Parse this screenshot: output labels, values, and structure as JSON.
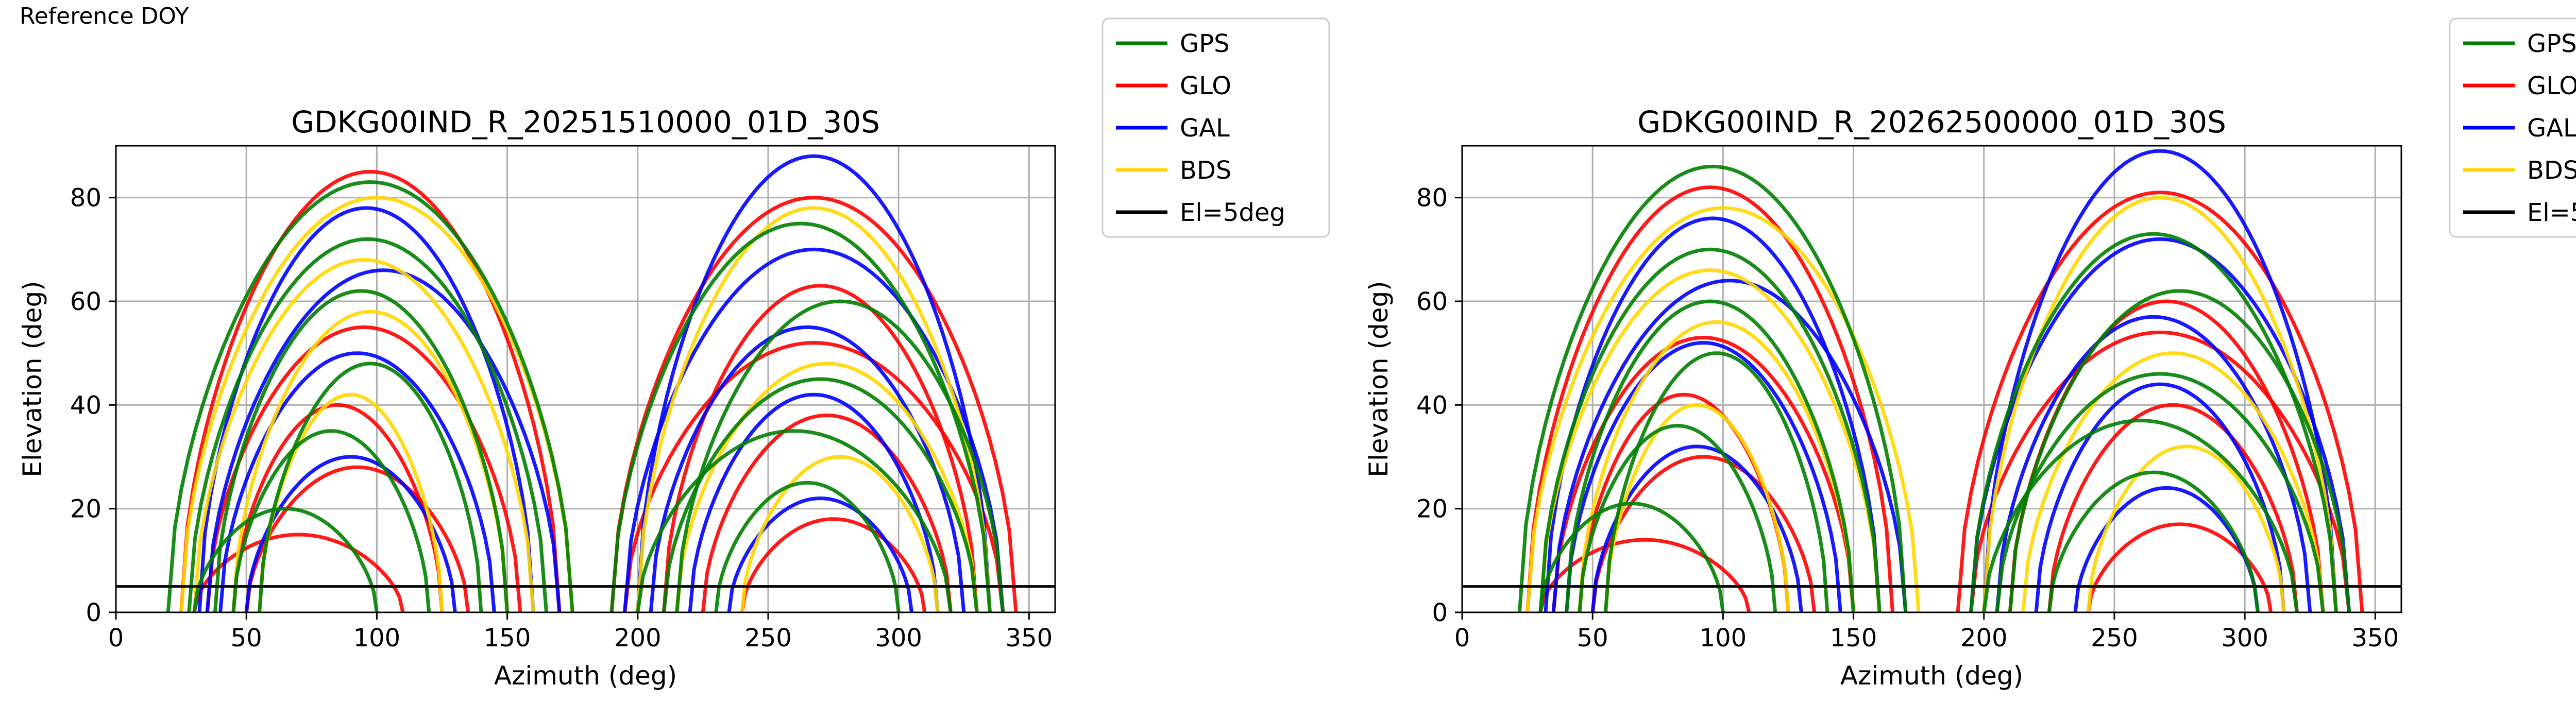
{
  "figure_label": "Reference DOY",
  "colors": {
    "GPS": "#008000",
    "GLO": "#ff0000",
    "GAL": "#0000ff",
    "BDS": "#ffd700",
    "El=5deg": "#000000"
  },
  "legend_entries": [
    "GPS",
    "GLO",
    "GAL",
    "BDS",
    "El=5deg"
  ],
  "chart_data": [
    {
      "type": "line",
      "title": "GDKG00IND_R_20251510000_01D_30S",
      "xlabel": "Azimuth (deg)",
      "ylabel": "Elevation (deg)",
      "xlim": [
        0,
        360
      ],
      "ylim": [
        0,
        90
      ],
      "xticks": [
        0,
        50,
        100,
        150,
        200,
        250,
        300,
        350
      ],
      "yticks": [
        0,
        20,
        40,
        60,
        80
      ],
      "grid": true,
      "legend_position": "outside-top-right",
      "reference_line": {
        "name": "El=5deg",
        "y": 5
      },
      "series": [
        {
          "name": "GPS",
          "tracks": [
            {
              "az0": 28,
              "az1": 165,
              "peak": 72
            },
            {
              "az0": 38,
              "az1": 150,
              "peak": 62
            },
            {
              "az0": 20,
              "az1": 175,
              "peak": 83
            },
            {
              "az0": 190,
              "az1": 335,
              "peak": 75
            },
            {
              "az0": 210,
              "az1": 330,
              "peak": 45
            },
            {
              "az0": 230,
              "az1": 300,
              "peak": 25
            },
            {
              "az0": 215,
              "az1": 340,
              "peak": 60
            },
            {
              "az0": 45,
              "az1": 120,
              "peak": 35
            },
            {
              "az0": 55,
              "az1": 140,
              "peak": 48
            },
            {
              "az0": 200,
              "az1": 320,
              "peak": 35
            },
            {
              "az0": 30,
              "az1": 100,
              "peak": 20
            }
          ]
        },
        {
          "name": "GLO",
          "tracks": [
            {
              "az0": 25,
              "az1": 170,
              "peak": 85
            },
            {
              "az0": 35,
              "az1": 155,
              "peak": 55
            },
            {
              "az0": 190,
              "az1": 345,
              "peak": 80
            },
            {
              "az0": 210,
              "az1": 330,
              "peak": 63
            },
            {
              "az0": 225,
              "az1": 320,
              "peak": 38
            },
            {
              "az0": 50,
              "az1": 135,
              "peak": 28
            },
            {
              "az0": 240,
              "az1": 310,
              "peak": 18
            },
            {
              "az0": 45,
              "az1": 125,
              "peak": 40
            },
            {
              "az0": 195,
              "az1": 340,
              "peak": 52
            },
            {
              "az0": 30,
              "az1": 110,
              "peak": 15
            }
          ]
        },
        {
          "name": "GAL",
          "tracks": [
            {
              "az0": 32,
              "az1": 160,
              "peak": 78
            },
            {
              "az0": 40,
              "az1": 145,
              "peak": 50
            },
            {
              "az0": 195,
              "az1": 340,
              "peak": 70
            },
            {
              "az0": 205,
              "az1": 325,
              "peak": 55
            },
            {
              "az0": 220,
              "az1": 315,
              "peak": 42
            },
            {
              "az0": 50,
              "az1": 130,
              "peak": 30
            },
            {
              "az0": 235,
              "az1": 305,
              "peak": 22
            },
            {
              "az0": 200,
              "az1": 335,
              "peak": 88
            },
            {
              "az0": 35,
              "az1": 170,
              "peak": 66
            }
          ]
        },
        {
          "name": "BDS",
          "tracks": [
            {
              "az0": 30,
              "az1": 160,
              "peak": 68
            },
            {
              "az0": 45,
              "az1": 150,
              "peak": 58
            },
            {
              "az0": 200,
              "az1": 335,
              "peak": 78
            },
            {
              "az0": 215,
              "az1": 330,
              "peak": 48
            },
            {
              "az0": 55,
              "az1": 125,
              "peak": 42
            },
            {
              "az0": 240,
              "az1": 315,
              "peak": 30
            },
            {
              "az0": 25,
              "az1": 175,
              "peak": 80
            }
          ]
        }
      ]
    },
    {
      "type": "line",
      "title": "GDKG00IND_R_20262500000_01D_30S",
      "xlabel": "Azimuth (deg)",
      "ylabel": "Elevation (deg)",
      "xlim": [
        0,
        360
      ],
      "ylim": [
        0,
        90
      ],
      "xticks": [
        0,
        50,
        100,
        150,
        200,
        250,
        300,
        350
      ],
      "yticks": [
        0,
        20,
        40,
        60,
        80
      ],
      "grid": true,
      "legend_position": "outside-top-right",
      "reference_line": {
        "name": "El=5deg",
        "y": 5
      },
      "series": [
        {
          "name": "GPS",
          "tracks": [
            {
              "az0": 30,
              "az1": 160,
              "peak": 70
            },
            {
              "az0": 40,
              "az1": 150,
              "peak": 60
            },
            {
              "az0": 22,
              "az1": 170,
              "peak": 86
            },
            {
              "az0": 195,
              "az1": 335,
              "peak": 73
            },
            {
              "az0": 205,
              "az1": 330,
              "peak": 46
            },
            {
              "az0": 225,
              "az1": 305,
              "peak": 27
            },
            {
              "az0": 210,
              "az1": 340,
              "peak": 62
            },
            {
              "az0": 45,
              "az1": 120,
              "peak": 36
            },
            {
              "az0": 55,
              "az1": 140,
              "peak": 50
            },
            {
              "az0": 200,
              "az1": 320,
              "peak": 37
            },
            {
              "az0": 30,
              "az1": 100,
              "peak": 21
            }
          ]
        },
        {
          "name": "GLO",
          "tracks": [
            {
              "az0": 25,
              "az1": 165,
              "peak": 82
            },
            {
              "az0": 35,
              "az1": 150,
              "peak": 53
            },
            {
              "az0": 190,
              "az1": 345,
              "peak": 81
            },
            {
              "az0": 210,
              "az1": 330,
              "peak": 60
            },
            {
              "az0": 225,
              "az1": 320,
              "peak": 40
            },
            {
              "az0": 50,
              "az1": 135,
              "peak": 30
            },
            {
              "az0": 240,
              "az1": 310,
              "peak": 17
            },
            {
              "az0": 45,
              "az1": 125,
              "peak": 42
            },
            {
              "az0": 195,
              "az1": 340,
              "peak": 54
            },
            {
              "az0": 30,
              "az1": 110,
              "peak": 14
            }
          ]
        },
        {
          "name": "GAL",
          "tracks": [
            {
              "az0": 32,
              "az1": 160,
              "peak": 76
            },
            {
              "az0": 40,
              "az1": 145,
              "peak": 52
            },
            {
              "az0": 195,
              "az1": 340,
              "peak": 72
            },
            {
              "az0": 205,
              "az1": 325,
              "peak": 57
            },
            {
              "az0": 220,
              "az1": 315,
              "peak": 44
            },
            {
              "az0": 50,
              "az1": 130,
              "peak": 32
            },
            {
              "az0": 235,
              "az1": 305,
              "peak": 24
            },
            {
              "az0": 200,
              "az1": 335,
              "peak": 89
            },
            {
              "az0": 35,
              "az1": 170,
              "peak": 64
            }
          ]
        },
        {
          "name": "BDS",
          "tracks": [
            {
              "az0": 30,
              "az1": 160,
              "peak": 66
            },
            {
              "az0": 45,
              "az1": 150,
              "peak": 56
            },
            {
              "az0": 200,
              "az1": 335,
              "peak": 80
            },
            {
              "az0": 215,
              "az1": 330,
              "peak": 50
            },
            {
              "az0": 55,
              "az1": 125,
              "peak": 40
            },
            {
              "az0": 240,
              "az1": 315,
              "peak": 32
            },
            {
              "az0": 25,
              "az1": 175,
              "peak": 78
            }
          ]
        }
      ]
    }
  ]
}
